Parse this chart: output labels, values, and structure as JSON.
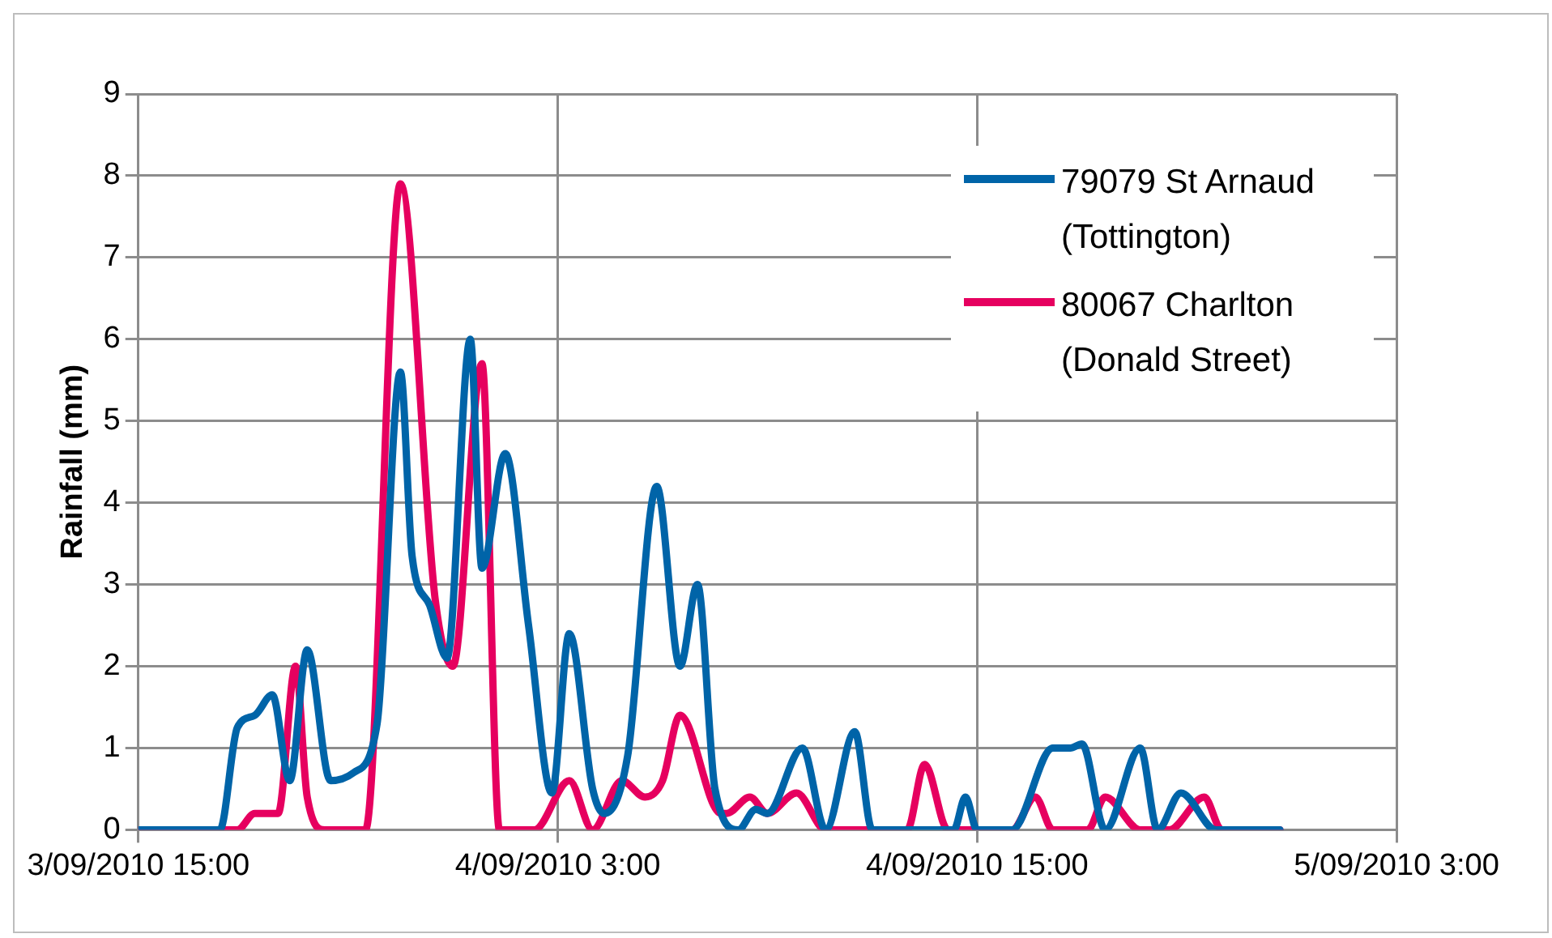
{
  "chart_data": {
    "type": "line",
    "ylabel": "Rainfall (mm)",
    "xlim": [
      "2010-09-03T15:00",
      "2010-09-05T03:00"
    ],
    "xticks": [
      {
        "value": "2010-09-03T15:00",
        "label": "3/09/2010 15:00"
      },
      {
        "value": "2010-09-04T03:00",
        "label": "4/09/2010 3:00"
      },
      {
        "value": "2010-09-04T15:00",
        "label": "4/09/2010 15:00"
      },
      {
        "value": "2010-09-05T03:00",
        "label": "5/09/2010 3:00"
      }
    ],
    "ylim": [
      0,
      9
    ],
    "yticks": [
      0,
      1,
      2,
      3,
      4,
      5,
      6,
      7,
      8,
      9
    ],
    "grid": true,
    "legend": "top right",
    "marker": "none",
    "line_style": "solid",
    "series": [
      {
        "name": "79079 St Arnaud (Tottington)",
        "color": "#0064a8",
        "x": [
          "2010-09-03T15:00",
          "2010-09-03T17:20",
          "2010-09-03T17:50",
          "2010-09-03T18:20",
          "2010-09-03T18:50",
          "2010-09-03T19:20",
          "2010-09-03T19:50",
          "2010-09-03T20:30",
          "2010-09-03T21:10",
          "2010-09-03T21:50",
          "2010-09-03T22:30",
          "2010-09-03T22:50",
          "2010-09-03T23:20",
          "2010-09-03T23:50",
          "2010-09-04T00:30",
          "2010-09-04T00:50",
          "2010-09-04T01:30",
          "2010-09-04T02:10",
          "2010-09-04T02:50",
          "2010-09-04T03:20",
          "2010-09-04T04:00",
          "2010-09-04T04:20",
          "2010-09-04T05:00",
          "2010-09-04T05:50",
          "2010-09-04T06:30",
          "2010-09-04T07:00",
          "2010-09-04T07:30",
          "2010-09-04T08:10",
          "2010-09-04T08:40",
          "2010-09-04T09:00",
          "2010-09-04T10:00",
          "2010-09-04T10:40",
          "2010-09-04T11:30",
          "2010-09-04T12:00",
          "2010-09-04T14:20",
          "2010-09-04T14:40",
          "2010-09-04T15:00",
          "2010-09-04T16:00",
          "2010-09-04T17:10",
          "2010-09-04T17:40",
          "2010-09-04T18:00",
          "2010-09-04T18:40",
          "2010-09-04T19:40",
          "2010-09-04T20:10",
          "2010-09-04T20:50",
          "2010-09-04T21:50",
          "2010-09-04T23:40"
        ],
        "values": [
          0,
          0,
          1.25,
          1.4,
          1.65,
          0.6,
          2.2,
          0.6,
          0.7,
          1.3,
          5.6,
          3.35,
          2.75,
          2.1,
          6.0,
          3.2,
          4.6,
          2.5,
          0.45,
          2.4,
          0.5,
          0.2,
          0.9,
          4.2,
          2.0,
          3.0,
          0.5,
          0,
          0.25,
          0.2,
          1.0,
          0,
          1.2,
          0,
          0,
          0.4,
          0,
          0,
          1.0,
          1.0,
          1.05,
          0,
          1.0,
          0,
          0.45,
          0,
          0
        ]
      },
      {
        "name": "80067 Charlton (Donald Street)",
        "color": "#e6005f",
        "x": [
          "2010-09-03T15:00",
          "2010-09-03T17:50",
          "2010-09-03T18:20",
          "2010-09-03T19:00",
          "2010-09-03T19:30",
          "2010-09-03T19:50",
          "2010-09-03T20:20",
          "2010-09-03T21:30",
          "2010-09-03T22:30",
          "2010-09-03T23:30",
          "2010-09-04T00:00",
          "2010-09-04T00:50",
          "2010-09-04T01:20",
          "2010-09-04T02:20",
          "2010-09-04T03:20",
          "2010-09-04T04:00",
          "2010-09-04T04:50",
          "2010-09-04T05:30",
          "2010-09-04T06:00",
          "2010-09-04T06:30",
          "2010-09-04T07:40",
          "2010-09-04T07:50",
          "2010-09-04T08:30",
          "2010-09-04T09:00",
          "2010-09-04T09:50",
          "2010-09-04T10:40",
          "2010-09-04T13:00",
          "2010-09-04T13:30",
          "2010-09-04T14:10",
          "2010-09-04T16:00",
          "2010-09-04T16:40",
          "2010-09-04T17:10",
          "2010-09-04T18:10",
          "2010-09-04T18:40",
          "2010-09-04T19:40",
          "2010-09-04T20:30",
          "2010-09-04T21:30",
          "2010-09-04T22:00",
          "2010-09-04T23:40"
        ],
        "values": [
          0,
          0,
          0.2,
          0.2,
          2.0,
          0.4,
          0,
          0,
          7.9,
          2.8,
          2.0,
          5.7,
          0,
          0,
          0.6,
          0,
          0.6,
          0.4,
          0.6,
          1.4,
          0.2,
          0.2,
          0.4,
          0.2,
          0.45,
          0,
          0,
          0.8,
          0,
          0,
          0.4,
          0,
          0,
          0.4,
          0,
          0,
          0.4,
          0,
          0
        ]
      }
    ]
  }
}
